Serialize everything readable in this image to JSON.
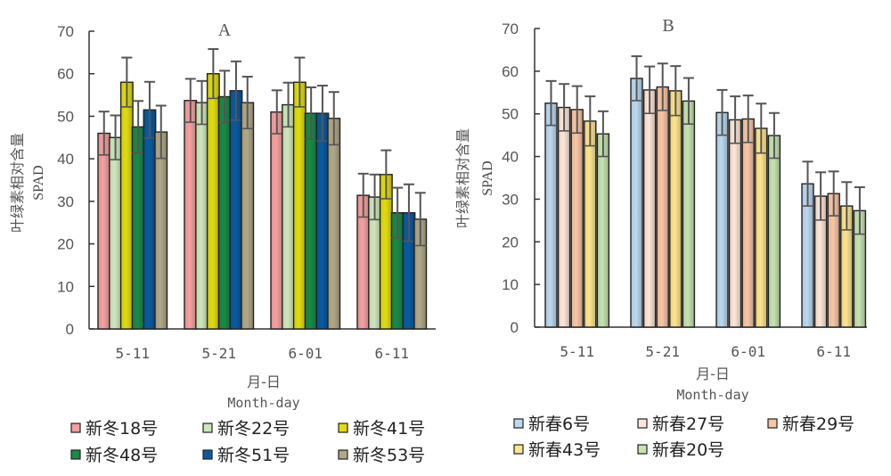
{
  "chart_data": [
    {
      "type": "bar",
      "title": "A",
      "xlabel": "月-日",
      "xlabel_en": "Month-day",
      "ylabel": "叶绿素相对含量",
      "ylabel_en": "SPAD",
      "ylim": [
        0,
        70
      ],
      "yticks": [
        "0",
        "10",
        "20",
        "30",
        "40",
        "50",
        "60",
        "70"
      ],
      "categories": [
        "5-11",
        "5-21",
        "6-01",
        "6-11"
      ],
      "legend_position": "bottom",
      "series": [
        {
          "name": "新冬18号",
          "color": "#f4a0a0",
          "values": [
            46,
            53.7,
            51,
            31.4
          ],
          "errors": [
            5.1,
            5.1,
            5.1,
            5.1
          ]
        },
        {
          "name": "新冬22号",
          "color": "#cfe6bd",
          "values": [
            45,
            53.2,
            52.7,
            31
          ],
          "errors": [
            5.2,
            5.1,
            5.2,
            5.3
          ]
        },
        {
          "name": "新冬41号",
          "color": "#e0dc10",
          "values": [
            58,
            60,
            58,
            36.3
          ],
          "errors": [
            5.8,
            5.8,
            5.8,
            5.7
          ]
        },
        {
          "name": "新冬48号",
          "color": "#1a8a48",
          "values": [
            47.5,
            54.6,
            50.7,
            27.3
          ],
          "errors": [
            6.1,
            6.1,
            6.1,
            5.9
          ]
        },
        {
          "name": "新冬51号",
          "color": "#0a5aa0",
          "values": [
            51.5,
            56,
            50.7,
            27.3
          ],
          "errors": [
            6.6,
            6.9,
            6.5,
            6.7
          ]
        },
        {
          "name": "新冬53号",
          "color": "#b0a888",
          "values": [
            46.3,
            53.2,
            49.5,
            25.8
          ],
          "errors": [
            6.2,
            6.1,
            6.2,
            6.2
          ]
        }
      ]
    },
    {
      "type": "bar",
      "title": "B",
      "xlabel": "月-日",
      "xlabel_en": "Month-day",
      "ylabel": "叶绿素相对含量",
      "ylabel_en": "SPAD",
      "ylim": [
        0,
        70
      ],
      "yticks": [
        "0",
        "10",
        "20",
        "30",
        "40",
        "50",
        "60",
        "70"
      ],
      "categories": [
        "5-11",
        "5-21",
        "6-01",
        "6-11"
      ],
      "legend_position": "bottom",
      "series": [
        {
          "name": "新春6号",
          "color": "#bcd8ef",
          "values": [
            52.5,
            58.3,
            50.3,
            33.6
          ],
          "errors": [
            5.2,
            5.2,
            5.3,
            5.2
          ]
        },
        {
          "name": "新春27号",
          "color": "#fde6d8",
          "values": [
            51.5,
            55.6,
            48.6,
            30.7
          ],
          "errors": [
            5.5,
            5.5,
            5.5,
            5.6
          ]
        },
        {
          "name": "新春29号",
          "color": "#f7c6a5",
          "values": [
            51,
            56.3,
            48.8,
            31.3
          ],
          "errors": [
            5.5,
            5.5,
            5.5,
            5.2
          ]
        },
        {
          "name": "新春43号",
          "color": "#fde48e",
          "values": [
            48.3,
            55.4,
            46.6,
            28.4
          ],
          "errors": [
            5.8,
            5.8,
            5.8,
            5.6
          ]
        },
        {
          "name": "新春20号",
          "color": "#c6e2b0",
          "values": [
            45.3,
            53,
            44.9,
            27.3
          ],
          "errors": [
            5.3,
            5.4,
            5.3,
            5.5
          ]
        }
      ]
    }
  ]
}
